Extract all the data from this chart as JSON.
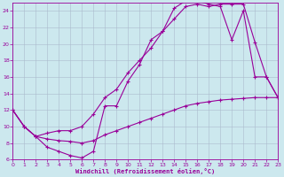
{
  "xlabel": "Windchill (Refroidissement éolien,°C)",
  "bg_color": "#cce8ee",
  "line_color": "#990099",
  "grid_color": "#aabbcc",
  "xlim": [
    0,
    23
  ],
  "ylim": [
    6,
    25
  ],
  "xticks": [
    0,
    1,
    2,
    3,
    4,
    5,
    6,
    7,
    8,
    9,
    10,
    11,
    12,
    13,
    14,
    15,
    16,
    17,
    18,
    19,
    20,
    21,
    22,
    23
  ],
  "yticks": [
    6,
    8,
    10,
    12,
    14,
    16,
    18,
    20,
    22,
    24
  ],
  "curve_upper_x": [
    0,
    1,
    2,
    3,
    4,
    5,
    6,
    7,
    8,
    9,
    10,
    11,
    12,
    13,
    14,
    15,
    16,
    17,
    18,
    19,
    20,
    21,
    22,
    23
  ],
  "curve_upper_y": [
    12.0,
    10.0,
    8.8,
    7.5,
    7.0,
    6.5,
    6.2,
    7.0,
    12.5,
    12.5,
    15.5,
    17.5,
    20.5,
    21.5,
    24.3,
    25.2,
    25.2,
    24.8,
    24.5,
    20.5,
    24.0,
    16.0,
    16.0,
    13.5
  ],
  "curve_mid_x": [
    0,
    1,
    2,
    3,
    4,
    5,
    6,
    7,
    8,
    9,
    10,
    11,
    12,
    13,
    14,
    15,
    16,
    17,
    18,
    19,
    20,
    21,
    22,
    23
  ],
  "curve_mid_y": [
    12.0,
    10.0,
    8.8,
    9.2,
    9.5,
    9.5,
    10.0,
    11.5,
    13.5,
    14.5,
    16.5,
    18.0,
    19.5,
    21.5,
    23.0,
    24.5,
    24.8,
    24.5,
    24.8,
    24.8,
    24.8,
    20.2,
    16.0,
    13.5
  ],
  "curve_lower_x": [
    0,
    1,
    2,
    3,
    4,
    5,
    6,
    7,
    8,
    9,
    10,
    11,
    12,
    13,
    14,
    15,
    16,
    17,
    18,
    19,
    20,
    21,
    22,
    23
  ],
  "curve_lower_y": [
    12.0,
    10.0,
    8.8,
    8.5,
    8.3,
    8.2,
    8.0,
    8.3,
    9.0,
    9.5,
    10.0,
    10.5,
    11.0,
    11.5,
    12.0,
    12.5,
    12.8,
    13.0,
    13.2,
    13.3,
    13.4,
    13.5,
    13.5,
    13.5
  ]
}
